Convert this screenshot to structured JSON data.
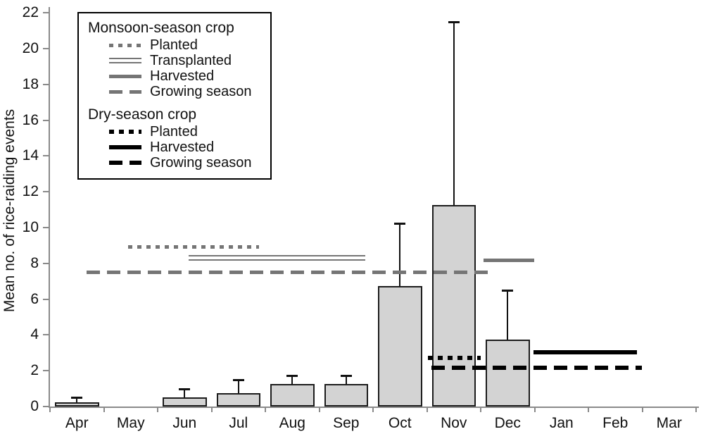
{
  "chart_data": {
    "type": "bar",
    "title": "",
    "xlabel": "",
    "ylabel": "Mean no. of rice-raiding events",
    "ylim": [
      0,
      22
    ],
    "yticks": [
      0,
      2,
      4,
      6,
      8,
      10,
      12,
      14,
      16,
      18,
      20,
      22
    ],
    "grid": "off",
    "categories": [
      "Apr",
      "May",
      "Jun",
      "Jul",
      "Aug",
      "Sep",
      "Oct",
      "Nov",
      "Dec",
      "Jan",
      "Feb",
      "Mar"
    ],
    "values": [
      0.25,
      0,
      0.5,
      0.75,
      1.25,
      1.25,
      6.75,
      11.25,
      3.75,
      0,
      0,
      0
    ],
    "error_bar_top": [
      0.5,
      0,
      1.0,
      1.5,
      1.75,
      1.75,
      10.25,
      21.5,
      6.5,
      0,
      0,
      0
    ],
    "colors": {
      "bar_fill": "#d3d3d3",
      "bar_border": "#1c1c1c",
      "axis": "#8a8a8a",
      "monsoon_gray": "#757575",
      "dry_black": "#000000"
    },
    "season_lines": [
      {
        "id": "monsoon-planted-line",
        "label": "Planted",
        "style": "dotted",
        "color": "#757575",
        "y": 8.9,
        "from": 1.45,
        "to": 3.88
      },
      {
        "id": "monsoon-transplanted-line",
        "label": "Transplanted",
        "style": "double",
        "color": "#757575",
        "y": 8.3,
        "from": 2.58,
        "to": 5.85
      },
      {
        "id": "monsoon-harvested-line",
        "label": "Harvested",
        "style": "solid",
        "color": "#757575",
        "y": 8.15,
        "from": 8.05,
        "to": 9.0
      },
      {
        "id": "monsoon-growing-line",
        "label": "Growing season",
        "style": "dashed",
        "color": "#757575",
        "y": 7.5,
        "from": 0.68,
        "to": 8.16
      },
      {
        "id": "dry-planted-line",
        "label": "Planted",
        "style": "dotted",
        "color": "#000000",
        "y": 2.7,
        "from": 7.02,
        "to": 8.0
      },
      {
        "id": "dry-harvested-line",
        "label": "Harvested",
        "style": "solid",
        "color": "#000000",
        "y": 3.05,
        "from": 8.98,
        "to": 10.9
      },
      {
        "id": "dry-growing-line",
        "label": "Growing season",
        "style": "dashed",
        "color": "#000000",
        "y": 2.15,
        "from": 7.08,
        "to": 11.0
      }
    ],
    "legend": {
      "position": "top-left",
      "groups": [
        {
          "title": "Monsoon-season crop",
          "items": [
            {
              "label": "Planted",
              "style": "dotted",
              "color": "#757575"
            },
            {
              "label": "Transplanted",
              "style": "double",
              "color": "#757575"
            },
            {
              "label": "Harvested",
              "style": "solid",
              "color": "#757575"
            },
            {
              "label": "Growing season",
              "style": "dashed",
              "color": "#757575"
            }
          ]
        },
        {
          "title": "Dry-season crop",
          "items": [
            {
              "label": "Planted",
              "style": "dotted",
              "color": "#000000"
            },
            {
              "label": "Harvested",
              "style": "solid",
              "color": "#000000"
            },
            {
              "label": "Growing season",
              "style": "dashed",
              "color": "#000000"
            }
          ]
        }
      ]
    }
  }
}
